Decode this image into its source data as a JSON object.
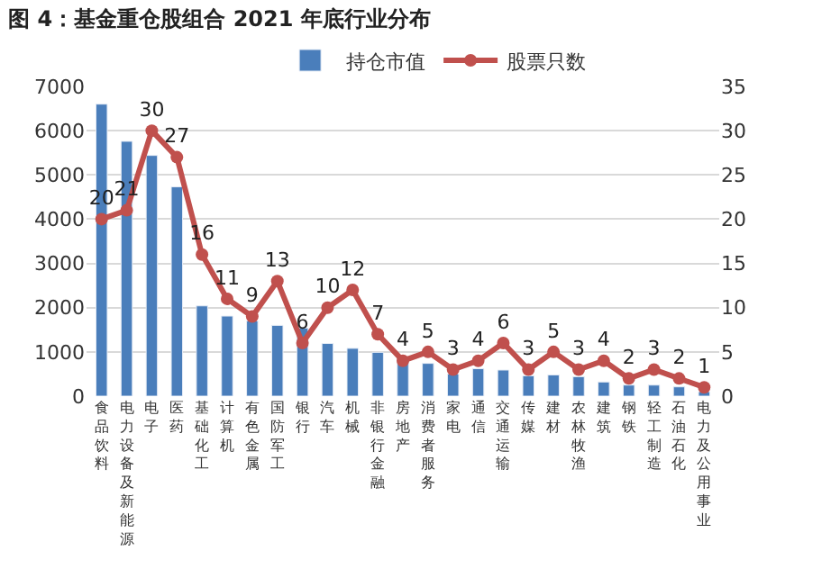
{
  "chart_data": {
    "type": "bar",
    "title": "图 4：基金重仓股组合 2021 年底行业分布",
    "categories": [
      "食品饮料",
      "电力设备及新能源",
      "电子",
      "医药",
      "基础化工",
      "计算机",
      "有色金属",
      "国防军工",
      "银行",
      "汽车",
      "机械",
      "非银行金融",
      "房地产",
      "消费者服务",
      "家电",
      "通信",
      "交通运输",
      "传媒",
      "建材",
      "农林牧渔",
      "建筑",
      "钢铁",
      "轻工制造",
      "石油石化",
      "电力及公用事业"
    ],
    "series": [
      {
        "name": "持仓市值",
        "color": "#4a7ebb",
        "values": [
          6600,
          5760,
          5440,
          4730,
          2040,
          1810,
          1700,
          1600,
          1540,
          1190,
          1080,
          990,
          850,
          740,
          500,
          620,
          590,
          460,
          480,
          440,
          320,
          250,
          250,
          210,
          100
        ]
      },
      {
        "name": "股票只数",
        "type": "line",
        "axis": "y2",
        "color": "#c0504d",
        "marker": "circle",
        "data_labels": true,
        "values": [
          20,
          21,
          30,
          27,
          16,
          11,
          9,
          13,
          6,
          10,
          12,
          7,
          4,
          5,
          3,
          4,
          6,
          3,
          5,
          3,
          4,
          2,
          3,
          2,
          1
        ]
      }
    ],
    "ylim": [
      0,
      7000
    ],
    "yticks": [
      0,
      1000,
      2000,
      3000,
      4000,
      5000,
      6000,
      7000
    ],
    "y2lim": [
      0,
      35
    ],
    "y2ticks": [
      0,
      5,
      10,
      15,
      20,
      25,
      30,
      35
    ],
    "grid": "y",
    "legend": "top"
  }
}
